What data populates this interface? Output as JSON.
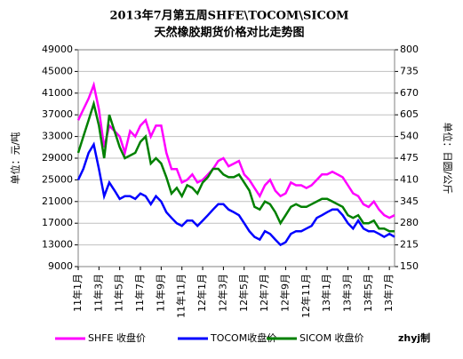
{
  "chart_data": {
    "type": "line",
    "title": "2013年7月第五周SHFE\\TOCOM\\SICOM",
    "subtitle": "天然橡胶期货价格对比走势图",
    "ylabel": "单位：元/吨",
    "y2label": "单位：日圆/公斤",
    "annotation": "zhyj制",
    "categories": [
      "11年1月",
      null,
      null,
      null,
      "11年3月",
      null,
      null,
      null,
      "11年5月",
      null,
      null,
      null,
      "11年7月",
      null,
      null,
      null,
      "11年9月",
      null,
      null,
      null,
      "11年11月",
      null,
      null,
      null,
      "12年1月",
      null,
      null,
      null,
      "12年3月",
      null,
      null,
      null,
      "12年5月",
      null,
      null,
      null,
      "12年7月",
      null,
      null,
      null,
      "12年9月",
      null,
      null,
      null,
      "12年11月",
      null,
      null,
      null,
      "13年1月",
      null,
      null,
      null,
      "13年3月",
      null,
      null,
      null,
      "13年5月",
      null,
      null,
      null,
      "13年7月",
      null
    ],
    "ylim": [
      9000,
      49000
    ],
    "yticks": [
      9000,
      13000,
      17000,
      21000,
      25000,
      29000,
      33000,
      37000,
      41000,
      45000,
      49000
    ],
    "y2lim": [
      150,
      800
    ],
    "y2ticks": [
      150,
      215,
      280,
      345,
      410,
      475,
      540,
      605,
      670,
      735,
      800
    ],
    "grid": true,
    "legend": "bottom",
    "series": [
      {
        "name": "SHFE 收盘价",
        "color": "#ff00ff",
        "values": [
          36000,
          38000,
          40000,
          42500,
          38000,
          31000,
          35000,
          34000,
          33000,
          30000,
          34000,
          33000,
          35000,
          36000,
          33000,
          35000,
          35000,
          30000,
          27000,
          27000,
          24500,
          25000,
          26000,
          24500,
          25000,
          26000,
          27000,
          28500,
          29000,
          27500,
          28000,
          28500,
          26000,
          25000,
          23500,
          22000,
          24000,
          25000,
          23000,
          22000,
          22500,
          24500,
          24000,
          24000,
          23500,
          24000,
          25000,
          26000,
          26000,
          26500,
          26000,
          25500,
          24000,
          22500,
          22000,
          20500,
          20000,
          21000,
          19500,
          18500,
          18000,
          18500
        ]
      },
      {
        "name": "TOCOM收盘价",
        "color": "#0000ff",
        "axis": "y2",
        "values": [
          410,
          443,
          491,
          516,
          443,
          361,
          402,
          378,
          353,
          361,
          361,
          353,
          369,
          361,
          337,
          361,
          345,
          313,
          296,
          280,
          272,
          288,
          288,
          272,
          288,
          304,
          321,
          337,
          337,
          321,
          313,
          304,
          280,
          256,
          239,
          231,
          256,
          248,
          231,
          215,
          223,
          248,
          256,
          256,
          264,
          272,
          296,
          304,
          313,
          321,
          321,
          304,
          280,
          264,
          288,
          264,
          256,
          256,
          248,
          239,
          248,
          239
        ]
      },
      {
        "name": "SICOM 收盘价",
        "color": "#008000",
        "axis": "y2",
        "values": [
          491,
          540,
          589,
          638,
          573,
          475,
          605,
          556,
          508,
          475,
          483,
          491,
          524,
          540,
          459,
          475,
          459,
          418,
          369,
          386,
          361,
          394,
          386,
          369,
          402,
          418,
          443,
          443,
          426,
          418,
          418,
          426,
          402,
          378,
          329,
          321,
          345,
          337,
          313,
          280,
          304,
          329,
          337,
          329,
          329,
          337,
          345,
          353,
          353,
          345,
          337,
          329,
          304,
          296,
          304,
          280,
          280,
          288,
          264,
          264,
          256,
          256
        ]
      }
    ]
  }
}
